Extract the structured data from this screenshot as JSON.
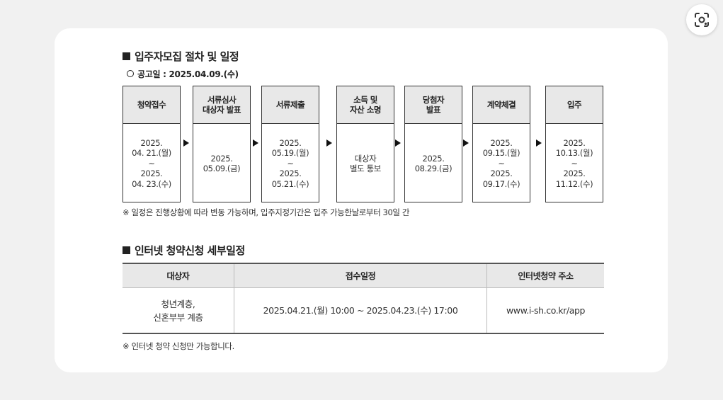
{
  "section1": {
    "title": "입주자모집 절차 및 일정",
    "announcement": "공고일 : 2025.04.09.(수)",
    "steps": [
      {
        "title": "청약접수",
        "date": "2025.\n04. 21.(월)\n~\n2025.\n04. 23.(수)"
      },
      {
        "title": "서류심사\n대상자 발표",
        "date": "2025.\n05.09.(금)"
      },
      {
        "title": "서류제출",
        "date": "2025.\n05.19.(월)\n~\n2025.\n05.21.(수)"
      },
      {
        "title": "소득 및\n자산 소명",
        "date": "대상자\n별도 통보"
      },
      {
        "title": "당첨자\n발표",
        "date": "2025.\n08.29.(금)"
      },
      {
        "title": "계약체결",
        "date": "2025.\n09.15.(월)\n~\n2025.\n09.17.(수)"
      },
      {
        "title": "입주",
        "date": "2025.\n10.13.(월)\n~\n2025.\n11.12.(수)"
      }
    ],
    "note": "※ 일정은 진행상황에 따라 변동 가능하며, 입주지정기간은 입주 가능한날로부터 30일 간"
  },
  "section2": {
    "title": "인터넷 청약신청 세부일정",
    "headers": [
      "대상자",
      "접수일정",
      "인터넷청약 주소"
    ],
    "row": [
      "청년계층,\n신혼부부 계층",
      "2025.04.21.(월) 10:00 ~ 2025.04.23.(수) 17:00",
      "www.i-sh.co.kr/app"
    ],
    "note": "※ 인터넷 청약 신청만 가능합니다."
  },
  "icons": {
    "lens": "google-lens-icon"
  }
}
